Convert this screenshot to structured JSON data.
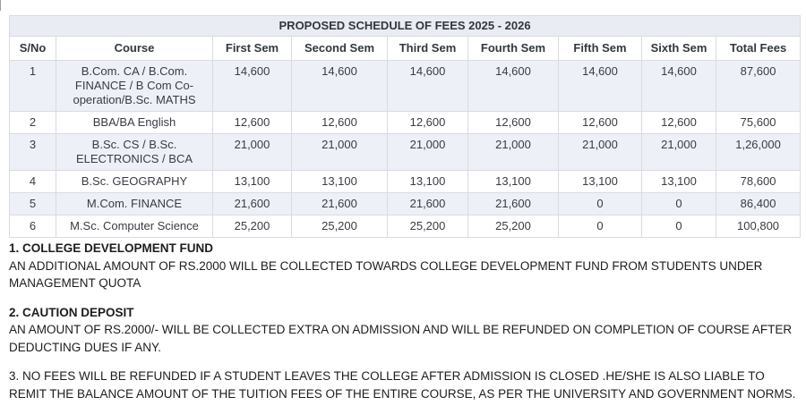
{
  "table": {
    "title": "PROPOSED SCHEDULE OF FEES 2025 - 2026",
    "columns": [
      "S/No",
      "Course",
      "First Sem",
      "Second Sem",
      "Third Sem",
      "Fourth Sem",
      "Fifth Sem",
      "Sixth Sem",
      "Total Fees"
    ],
    "rows": [
      [
        "1",
        "B.Com. CA / B.Com. FINANCE / B Com Co-operation/B.Sc. MATHS",
        "14,600",
        "14,600",
        "14,600",
        "14,600",
        "14,600",
        "14,600",
        "87,600"
      ],
      [
        "2",
        "BBA/BA English",
        "12,600",
        "12,600",
        "12,600",
        "12,600",
        "12,600",
        "12,600",
        "75,600"
      ],
      [
        "3",
        "B.Sc. CS / B.Sc. ELECTRONICS / BCA",
        "21,000",
        "21,000",
        "21,000",
        "21,000",
        "21,000",
        "21,000",
        "1,26,000"
      ],
      [
        "4",
        "B.Sc. GEOGRAPHY",
        "13,100",
        "13,100",
        "13,100",
        "13,100",
        "13,100",
        "13,100",
        "78,600"
      ],
      [
        "5",
        "M.Com. FINANCE",
        "21,600",
        "21,600",
        "21,600",
        "21,600",
        "0",
        "0",
        "86,400"
      ],
      [
        "6",
        "M.Sc. Computer Science",
        "25,200",
        "25,200",
        "25,200",
        "25,200",
        "0",
        "0",
        "100,800"
      ]
    ]
  },
  "notes": [
    {
      "heading": "1. COLLEGE DEVELOPMENT FUND",
      "body": "AN ADDITIONAL AMOUNT OF RS.2000 WILL BE COLLECTED TOWARDS COLLEGE DEVELOPMENT FUND FROM STUDENTS UNDER MANAGEMENT QUOTA"
    },
    {
      "heading": "2. CAUTION DEPOSIT",
      "body": "AN AMOUNT OF RS.2000/- WILL BE COLLECTED EXTRA ON ADMISSION AND WILL BE REFUNDED ON COMPLETION OF COURSE AFTER DEDUCTING DUES IF ANY."
    },
    {
      "heading": "",
      "body": "3. NO FEES WILL BE REFUNDED IF A STUDENT LEAVES THE COLLEGE AFTER ADMISSION IS CLOSED .HE/SHE IS ALSO LIABLE TO REMIT THE BALANCE AMOUNT OF THE TUITION FEES OF THE ENTIRE COURSE, AS PER THE UNIVERSITY AND GOVERNMENT NORMS."
    }
  ],
  "colors": {
    "stripe_bg": "#edf0f6",
    "title_bg": "#e9ecf3",
    "border": "#d9dbdf",
    "table_text": "#383c43",
    "note_text": "#1d1d1d"
  }
}
